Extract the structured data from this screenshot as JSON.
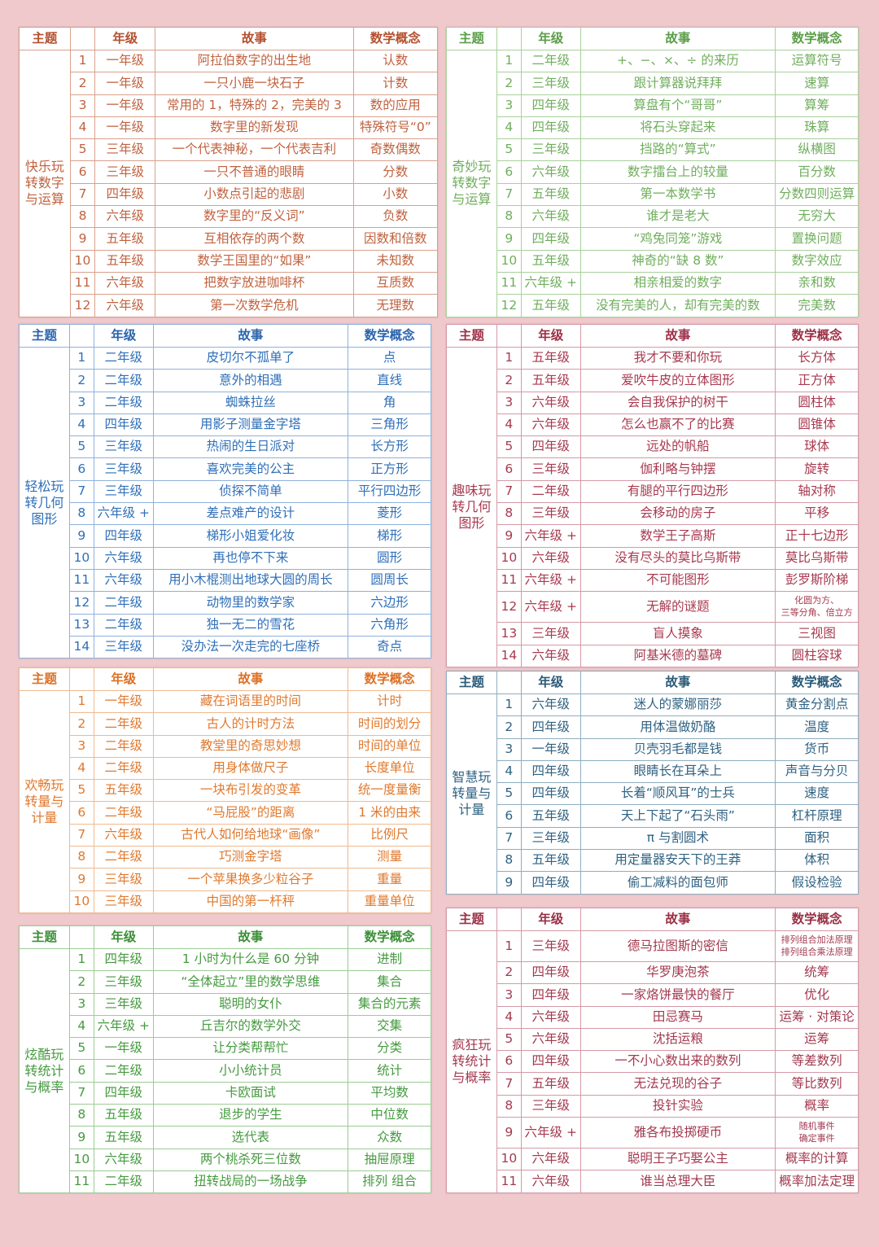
{
  "headers": {
    "theme": "主题",
    "num": "",
    "grade": "年级",
    "story": "故事",
    "concept": "数学概念"
  },
  "tables": [
    {
      "theme": "快乐玩转数字与运算",
      "colors": {
        "header": "#b4502f",
        "text": "#c0623f",
        "border": "#d9a08c"
      },
      "rows": [
        [
          "1",
          "一年级",
          "阿拉伯数字的出生地",
          "认数"
        ],
        [
          "2",
          "一年级",
          "一只小鹿一块石子",
          "计数"
        ],
        [
          "3",
          "一年级",
          "常用的 1，特殊的 2，完美的 3",
          "数的应用"
        ],
        [
          "4",
          "一年级",
          "数字里的新发现",
          "特殊符号“0”"
        ],
        [
          "5",
          "三年级",
          "一个代表神秘，一个代表吉利",
          "奇数偶数"
        ],
        [
          "6",
          "三年级",
          "一只不普通的眼睛",
          "分数"
        ],
        [
          "7",
          "四年级",
          "小数点引起的悲剧",
          "小数"
        ],
        [
          "8",
          "六年级",
          "数字里的“反义词”",
          "负数"
        ],
        [
          "9",
          "五年级",
          "互相依存的两个数",
          "因数和倍数"
        ],
        [
          "10",
          "五年级",
          "数学王国里的“如果”",
          "未知数"
        ],
        [
          "11",
          "六年级",
          "把数字放进咖啡杯",
          "互质数"
        ],
        [
          "12",
          "六年级",
          "第一次数学危机",
          "无理数"
        ]
      ]
    },
    {
      "theme": "奇妙玩转数字与运算",
      "colors": {
        "header": "#5a9e47",
        "text": "#6fae5c",
        "border": "#a9d09c"
      },
      "rows": [
        [
          "1",
          "二年级",
          "+、−、×、÷ 的来历",
          "运算符号"
        ],
        [
          "2",
          "三年级",
          "跟计算器说拜拜",
          "速算"
        ],
        [
          "3",
          "四年级",
          "算盘有个“哥哥”",
          "算筹"
        ],
        [
          "4",
          "四年级",
          "将石头穿起来",
          "珠算"
        ],
        [
          "5",
          "三年级",
          "挡路的“算式”",
          "纵横图"
        ],
        [
          "6",
          "六年级",
          "数字擂台上的较量",
          "百分数"
        ],
        [
          "7",
          "五年级",
          "第一本数学书",
          "分数四则运算"
        ],
        [
          "8",
          "六年级",
          "谁才是老大",
          "无穷大"
        ],
        [
          "9",
          "四年级",
          "“鸡兔同笼”游戏",
          "置换问题"
        ],
        [
          "10",
          "五年级",
          "神奇的“缺 8 数”",
          "数字效应"
        ],
        [
          "11",
          "六年级 +",
          "相亲相爱的数字",
          "亲和数"
        ],
        [
          "12",
          "五年级",
          "没有完美的人，却有完美的数",
          "完美数"
        ]
      ]
    },
    {
      "theme": "轻松玩转几何图形",
      "colors": {
        "header": "#2a64ad",
        "text": "#2f6fb8",
        "border": "#8fb2da"
      },
      "rows": [
        [
          "1",
          "二年级",
          "皮切尔不孤单了",
          "点"
        ],
        [
          "2",
          "二年级",
          "意外的相遇",
          "直线"
        ],
        [
          "3",
          "二年级",
          "蜘蛛拉丝",
          "角"
        ],
        [
          "4",
          "四年级",
          "用影子测量金字塔",
          "三角形"
        ],
        [
          "5",
          "三年级",
          "热闹的生日派对",
          "长方形"
        ],
        [
          "6",
          "三年级",
          "喜欢完美的公主",
          "正方形"
        ],
        [
          "7",
          "三年级",
          "侦探不简单",
          "平行四边形"
        ],
        [
          "8",
          "六年级 +",
          "差点难产的设计",
          "菱形"
        ],
        [
          "9",
          "四年级",
          "梯形小姐爱化妆",
          "梯形"
        ],
        [
          "10",
          "六年级",
          "再也停不下来",
          "圆形"
        ],
        [
          "11",
          "六年级",
          "用小木棍测出地球大圆的周长",
          "圆周长"
        ],
        [
          "12",
          "二年级",
          "动物里的数学家",
          "六边形"
        ],
        [
          "13",
          "二年级",
          "独一无二的雪花",
          "六角形"
        ],
        [
          "14",
          "三年级",
          "没办法一次走完的七座桥",
          "奇点"
        ]
      ]
    },
    {
      "theme": "趣味玩转几何图形",
      "colors": {
        "header": "#9e2f45",
        "text": "#a8394f",
        "border": "#d49aa6"
      },
      "rows": [
        [
          "1",
          "五年级",
          "我才不要和你玩",
          "长方体"
        ],
        [
          "2",
          "五年级",
          "爱吹牛皮的立体图形",
          "正方体"
        ],
        [
          "3",
          "六年级",
          "会自我保护的树干",
          "圆柱体"
        ],
        [
          "4",
          "六年级",
          "怎么也赢不了的比赛",
          "圆锥体"
        ],
        [
          "5",
          "四年级",
          "远处的帆船",
          "球体"
        ],
        [
          "6",
          "三年级",
          "伽利略与钟摆",
          "旋转"
        ],
        [
          "7",
          "二年级",
          "有腿的平行四边形",
          "轴对称"
        ],
        [
          "8",
          "三年级",
          "会移动的房子",
          "平移"
        ],
        [
          "9",
          "六年级 +",
          "数学王子高斯",
          "正十七边形"
        ],
        [
          "10",
          "六年级",
          "没有尽头的莫比乌斯带",
          "莫比乌斯带"
        ],
        [
          "11",
          "六年级 +",
          "不可能图形",
          "彭罗斯阶梯"
        ],
        [
          "12",
          "六年级 +",
          "无解的谜题",
          "化圆为方、\n三等分角、倍立方"
        ],
        [
          "13",
          "三年级",
          "盲人摸象",
          "三视图"
        ],
        [
          "14",
          "六年级",
          "阿基米德的墓碑",
          "圆柱容球"
        ]
      ]
    },
    {
      "theme": "欢畅玩转量与计量",
      "colors": {
        "header": "#dc7024",
        "text": "#e0792e",
        "border": "#f0b98e"
      },
      "rows": [
        [
          "1",
          "一年级",
          "藏在词语里的时间",
          "计时"
        ],
        [
          "2",
          "二年级",
          "古人的计时方法",
          "时间的划分"
        ],
        [
          "3",
          "二年级",
          "教堂里的奇思妙想",
          "时间的单位"
        ],
        [
          "4",
          "二年级",
          "用身体做尺子",
          "长度单位"
        ],
        [
          "5",
          "五年级",
          "一块布引发的变革",
          "统一度量衡"
        ],
        [
          "6",
          "二年级",
          "“马屁股”的距离",
          "1 米的由来"
        ],
        [
          "7",
          "六年级",
          "古代人如何给地球“画像”",
          "比例尺"
        ],
        [
          "8",
          "二年级",
          "巧测金字塔",
          "测量"
        ],
        [
          "9",
          "三年级",
          "一个苹果换多少粒谷子",
          "重量"
        ],
        [
          "10",
          "三年级",
          "中国的第一杆秤",
          "重量单位"
        ]
      ]
    },
    {
      "theme": "智慧玩转量与计量",
      "colors": {
        "header": "#2b5a78",
        "text": "#2f6282",
        "border": "#8fadc0"
      },
      "rows": [
        [
          "1",
          "六年级",
          "迷人的蒙娜丽莎",
          "黄金分割点"
        ],
        [
          "2",
          "四年级",
          "用体温做奶酪",
          "温度"
        ],
        [
          "3",
          "一年级",
          "贝壳羽毛都是钱",
          "货币"
        ],
        [
          "4",
          "四年级",
          "眼睛长在耳朵上",
          "声音与分贝"
        ],
        [
          "5",
          "四年级",
          "长着“顺风耳”的士兵",
          "速度"
        ],
        [
          "6",
          "五年级",
          "天上下起了“石头雨”",
          "杠杆原理"
        ],
        [
          "7",
          "三年级",
          "π 与割圆术",
          "面积"
        ],
        [
          "8",
          "五年级",
          "用定量器安天下的王莽",
          "体积"
        ],
        [
          "9",
          "四年级",
          "偷工减料的面包师",
          "假设检验"
        ]
      ]
    },
    {
      "theme": "炫酷玩转统计与概率",
      "colors": {
        "header": "#3b8f36",
        "text": "#459a3f",
        "border": "#9ccb95"
      },
      "rows": [
        [
          "1",
          "四年级",
          "1 小时为什么是 60 分钟",
          "进制"
        ],
        [
          "2",
          "三年级",
          "“全体起立”里的数学思维",
          "集合"
        ],
        [
          "3",
          "三年级",
          "聪明的女仆",
          "集合的元素"
        ],
        [
          "4",
          "六年级 +",
          "丘吉尔的数学外交",
          "交集"
        ],
        [
          "5",
          "一年级",
          "让分类帮帮忙",
          "分类"
        ],
        [
          "6",
          "二年级",
          "小小统计员",
          "统计"
        ],
        [
          "7",
          "四年级",
          "卡欧面试",
          "平均数"
        ],
        [
          "8",
          "五年级",
          "退步的学生",
          "中位数"
        ],
        [
          "9",
          "五年级",
          "选代表",
          "众数"
        ],
        [
          "10",
          "六年级",
          "两个桃杀死三位数",
          "抽屉原理"
        ],
        [
          "11",
          "二年级",
          "扭转战局的一场战争",
          "排列 组合"
        ]
      ]
    },
    {
      "theme": "疯狂玩转统计与概率",
      "colors": {
        "header": "#9a2f45",
        "text": "#a3394f",
        "border": "#d49aa6"
      },
      "rows": [
        [
          "1",
          "三年级",
          "德马拉图斯的密信",
          "排列组合加法原理\n排列组合乘法原理"
        ],
        [
          "2",
          "四年级",
          "华罗庚泡茶",
          "统筹"
        ],
        [
          "3",
          "四年级",
          "一家烙饼最快的餐厅",
          "优化"
        ],
        [
          "4",
          "六年级",
          "田忌赛马",
          "运筹 · 对策论"
        ],
        [
          "5",
          "六年级",
          "沈括运粮",
          "运筹"
        ],
        [
          "6",
          "四年级",
          "一不小心数出来的数列",
          "等差数列"
        ],
        [
          "7",
          "五年级",
          "无法兑现的谷子",
          "等比数列"
        ],
        [
          "8",
          "三年级",
          "投针实验",
          "概率"
        ],
        [
          "9",
          "六年级 +",
          "雅各布投掷硬币",
          "随机事件\n确定事件"
        ],
        [
          "10",
          "六年级",
          "聪明王子巧娶公主",
          "概率的计算"
        ],
        [
          "11",
          "六年级",
          "谁当总理大臣",
          "概率加法定理"
        ]
      ]
    }
  ]
}
